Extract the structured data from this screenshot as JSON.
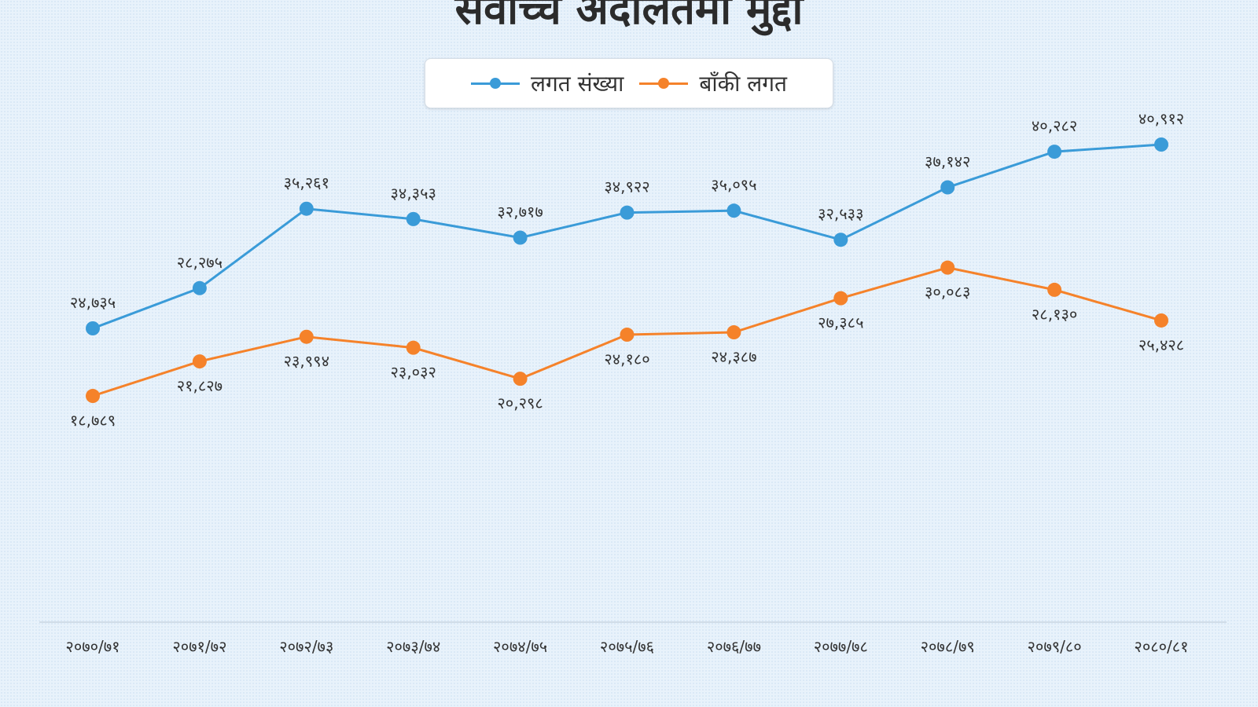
{
  "chart_data": {
    "type": "line",
    "title": "सर्वोच्च अदालतमा मुद्दा",
    "categories": [
      "२०७०/७१",
      "२०७१/७२",
      "२०७२/७३",
      "२०७३/७४",
      "२०७४/७५",
      "२०७५/७६",
      "२०७६/७७",
      "२०७७/७८",
      "२०७८/७९",
      "२०७९/८०",
      "२०८०/८१"
    ],
    "series": [
      {
        "name": "लगत संख्या",
        "color": "#3a9bd8",
        "values": [
          24735,
          28275,
          35261,
          34353,
          32717,
          34922,
          35095,
          32533,
          37142,
          40282,
          40912
        ],
        "labels": [
          "२४,७३५",
          "२८,२७५",
          "३५,२६१",
          "३४,३५३",
          "३२,७१७",
          "३४,९२२",
          "३५,०९५",
          "३२,५३३",
          "३७,१४२",
          "४०,२८२",
          "४०,९१२"
        ]
      },
      {
        "name": "बाँकी लगत",
        "color": "#f5822a",
        "values": [
          18789,
          21827,
          23994,
          23032,
          20298,
          24180,
          24387,
          27385,
          30083,
          28130,
          25428
        ],
        "labels": [
          "१८,७८९",
          "२१,८२७",
          "२३,९९४",
          "२३,०३२",
          "२०,२९८",
          "२४,१८०",
          "२४,३८७",
          "२७,३८५",
          "३०,०८३",
          "२८,१३०",
          "२५,४२८"
        ]
      }
    ],
    "legend_position": "top-center",
    "grid": false
  }
}
